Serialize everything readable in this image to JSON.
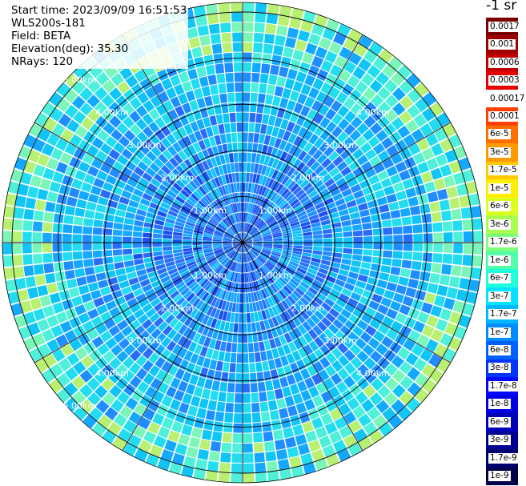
{
  "header": {
    "start_time": "Start time: 2023/09/09 16:51:53",
    "instrument": "WLS200s-181",
    "field": "Field: BETA",
    "elevation": "Elevation(deg): 35.30",
    "nrays": "NRays: 120"
  },
  "colorbar": {
    "title": "-1 sr",
    "levels": [
      {
        "label": "0.0017",
        "color": "#7a0000"
      },
      {
        "label": "0.001",
        "color": "#9c0000"
      },
      {
        "label": "0.0006",
        "color": "#c00000"
      },
      {
        "label": "0.0003",
        "color": "#e80000"
      },
      {
        "label": "0.00017",
        "color": "#ffffff"
      },
      {
        "label": "0.0001",
        "color": "#ff4000"
      },
      {
        "label": "6e-5",
        "color": "#ff7000"
      },
      {
        "label": "3e-5",
        "color": "#ff9a00"
      },
      {
        "label": "1.7e-5",
        "color": "#ffc800"
      },
      {
        "label": "1e-5",
        "color": "#ffee00"
      },
      {
        "label": "6e-6",
        "color": "#dcff20"
      },
      {
        "label": "3e-6",
        "color": "#a8ff50"
      },
      {
        "label": "1.7e-6",
        "color": "#7cff7c"
      },
      {
        "label": "1e-6",
        "color": "#50ffa8"
      },
      {
        "label": "6e-7",
        "color": "#20ffdc"
      },
      {
        "label": "3e-7",
        "color": "#00e4ff"
      },
      {
        "label": "1.7e-7",
        "color": "#00b8ff"
      },
      {
        "label": "1e-7",
        "color": "#008cff"
      },
      {
        "label": "6e-8",
        "color": "#0060ff"
      },
      {
        "label": "3e-8",
        "color": "#0034ff"
      },
      {
        "label": "1.7e-8",
        "color": "#0008ff"
      },
      {
        "label": "1e-8",
        "color": "#0000e0"
      },
      {
        "label": "6e-9",
        "color": "#0000b8"
      },
      {
        "label": "3e-9",
        "color": "#000090"
      },
      {
        "label": "1.7e-9",
        "color": "#000070"
      },
      {
        "label": "1e-9",
        "color": "#00004a"
      }
    ]
  },
  "plot": {
    "rays": 120,
    "gates": 24,
    "field_palette": [
      "#0a2ed8",
      "#1a4ff0",
      "#2a6cfa",
      "#1f8cff",
      "#15a8ff",
      "#10c4f6",
      "#24dcf0",
      "#4ef0da",
      "#7cf6b8",
      "#b8f072"
    ],
    "range_ring_labels": [
      "1.00km",
      "2.00km",
      "3.00km",
      "4.00km",
      "5.00km"
    ],
    "range_rings_km": [
      1,
      2,
      3,
      4,
      5
    ]
  }
}
